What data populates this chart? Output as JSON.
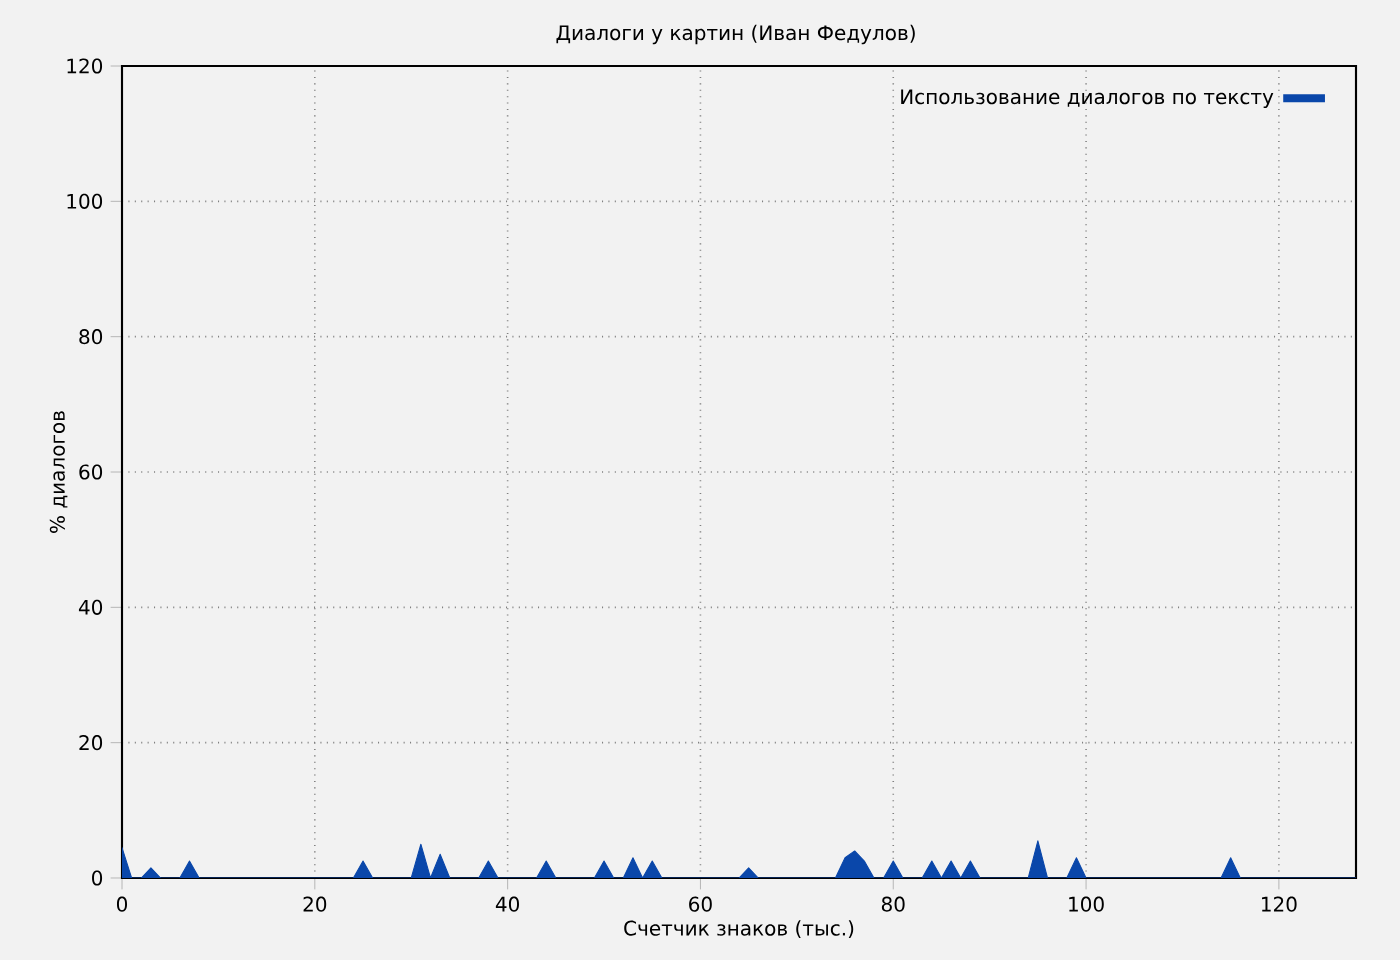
{
  "chart_data": {
    "type": "area",
    "title": "Диалоги у картин (Иван Федулов)",
    "xlabel": "Счетчик знаков (тыс.)",
    "ylabel": "% диалогов",
    "xlim": [
      0,
      128
    ],
    "ylim": [
      0,
      120
    ],
    "xticks": [
      0,
      20,
      40,
      60,
      80,
      100,
      120
    ],
    "yticks": [
      0,
      20,
      40,
      60,
      80,
      100,
      120
    ],
    "grid": true,
    "legend": "top right",
    "series": [
      {
        "name": "Использование диалогов по тексту",
        "color": "#0a47aa",
        "x": [
          0,
          1,
          2,
          3,
          4,
          6,
          7,
          8,
          24,
          25,
          26,
          30,
          31,
          32,
          33,
          34,
          37,
          38,
          39,
          43,
          44,
          45,
          49,
          50,
          51,
          52,
          53,
          54,
          55,
          56,
          64,
          65,
          66,
          74,
          75,
          76,
          77,
          78,
          79,
          80,
          81,
          83,
          84,
          85,
          86,
          87,
          88,
          89,
          94,
          95,
          96,
          98,
          99,
          100,
          114,
          115,
          116,
          128
        ],
        "values": [
          4.5,
          0,
          0,
          1.5,
          0,
          0,
          2.5,
          0,
          0,
          2.5,
          0,
          0,
          5,
          0,
          3.5,
          0,
          0,
          2.5,
          0,
          0,
          2.5,
          0,
          0,
          2.5,
          0,
          0,
          3,
          0,
          2.5,
          0,
          0,
          1.5,
          0,
          0,
          3,
          4,
          2.5,
          0,
          0,
          2.5,
          0,
          0,
          2.5,
          0,
          2.5,
          0,
          2.5,
          0,
          0,
          5.5,
          0,
          0,
          3,
          0,
          0,
          3,
          0,
          0
        ]
      }
    ]
  }
}
